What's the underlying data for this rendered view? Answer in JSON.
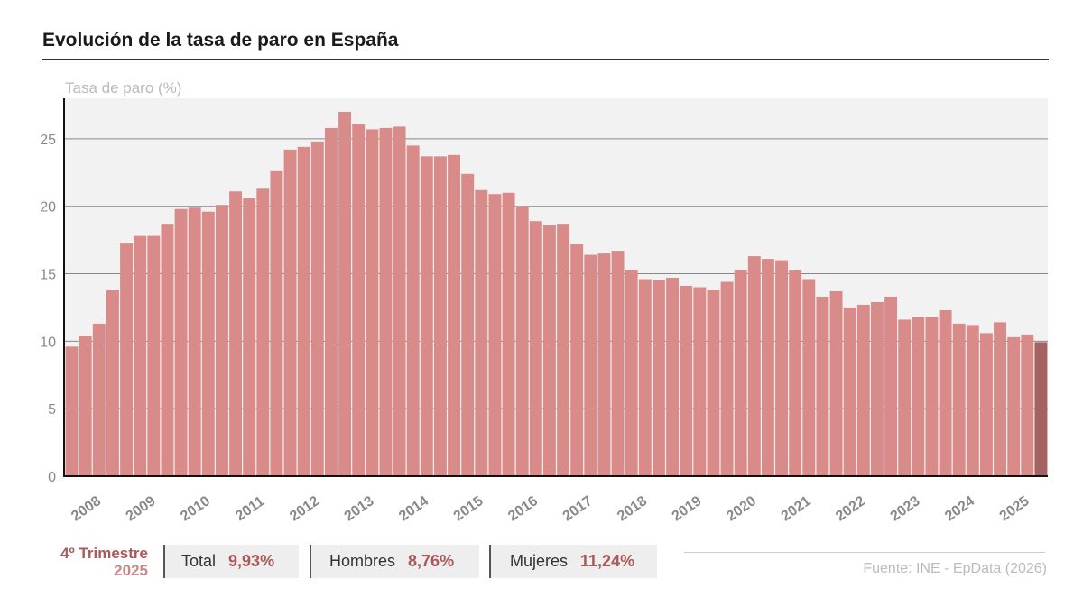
{
  "title": "Evolución de la tasa de paro en España",
  "source": "Fuente: INE - EpData (2026)",
  "summary": {
    "period_line1": "4º Trimestre",
    "period_line2": "2025",
    "total_label": "Total",
    "total_value": "9,93%",
    "men_label": "Hombres",
    "men_value": "8,76%",
    "women_label": "Mujeres",
    "women_value": "11,24%"
  },
  "colors": {
    "bar": "#d98b8a",
    "bar_last": "#a46263",
    "plot_bg": "#f2f2f2",
    "grid": "#888888",
    "tick": "#888888",
    "accent": "#a85a5a"
  },
  "chart_data": {
    "type": "bar",
    "ylabel": "Tasa de paro (%)",
    "ylim": [
      0,
      28
    ],
    "yticks": [
      0,
      5,
      10,
      15,
      20,
      25
    ],
    "year_labels": [
      "2008",
      "2009",
      "2010",
      "2011",
      "2012",
      "2013",
      "2014",
      "2015",
      "2016",
      "2017",
      "2018",
      "2019",
      "2020",
      "2021",
      "2022",
      "2023",
      "2024",
      "2025"
    ],
    "grid": true,
    "values": [
      9.6,
      10.4,
      11.3,
      13.8,
      17.3,
      17.8,
      17.8,
      18.7,
      19.8,
      19.9,
      19.6,
      20.1,
      21.1,
      20.6,
      21.3,
      22.6,
      24.2,
      24.4,
      24.8,
      25.8,
      27.0,
      26.1,
      25.7,
      25.8,
      25.9,
      24.5,
      23.7,
      23.7,
      23.8,
      22.4,
      21.2,
      20.9,
      21.0,
      20.0,
      18.9,
      18.6,
      18.7,
      17.2,
      16.4,
      16.5,
      16.7,
      15.3,
      14.6,
      14.5,
      14.7,
      14.1,
      14.0,
      13.8,
      14.4,
      15.3,
      16.3,
      16.1,
      16.0,
      15.3,
      14.6,
      13.3,
      13.7,
      12.5,
      12.7,
      12.9,
      13.3,
      11.6,
      11.8,
      11.8,
      12.3,
      11.3,
      11.2,
      10.6,
      11.4,
      10.3,
      10.5,
      9.93
    ]
  }
}
